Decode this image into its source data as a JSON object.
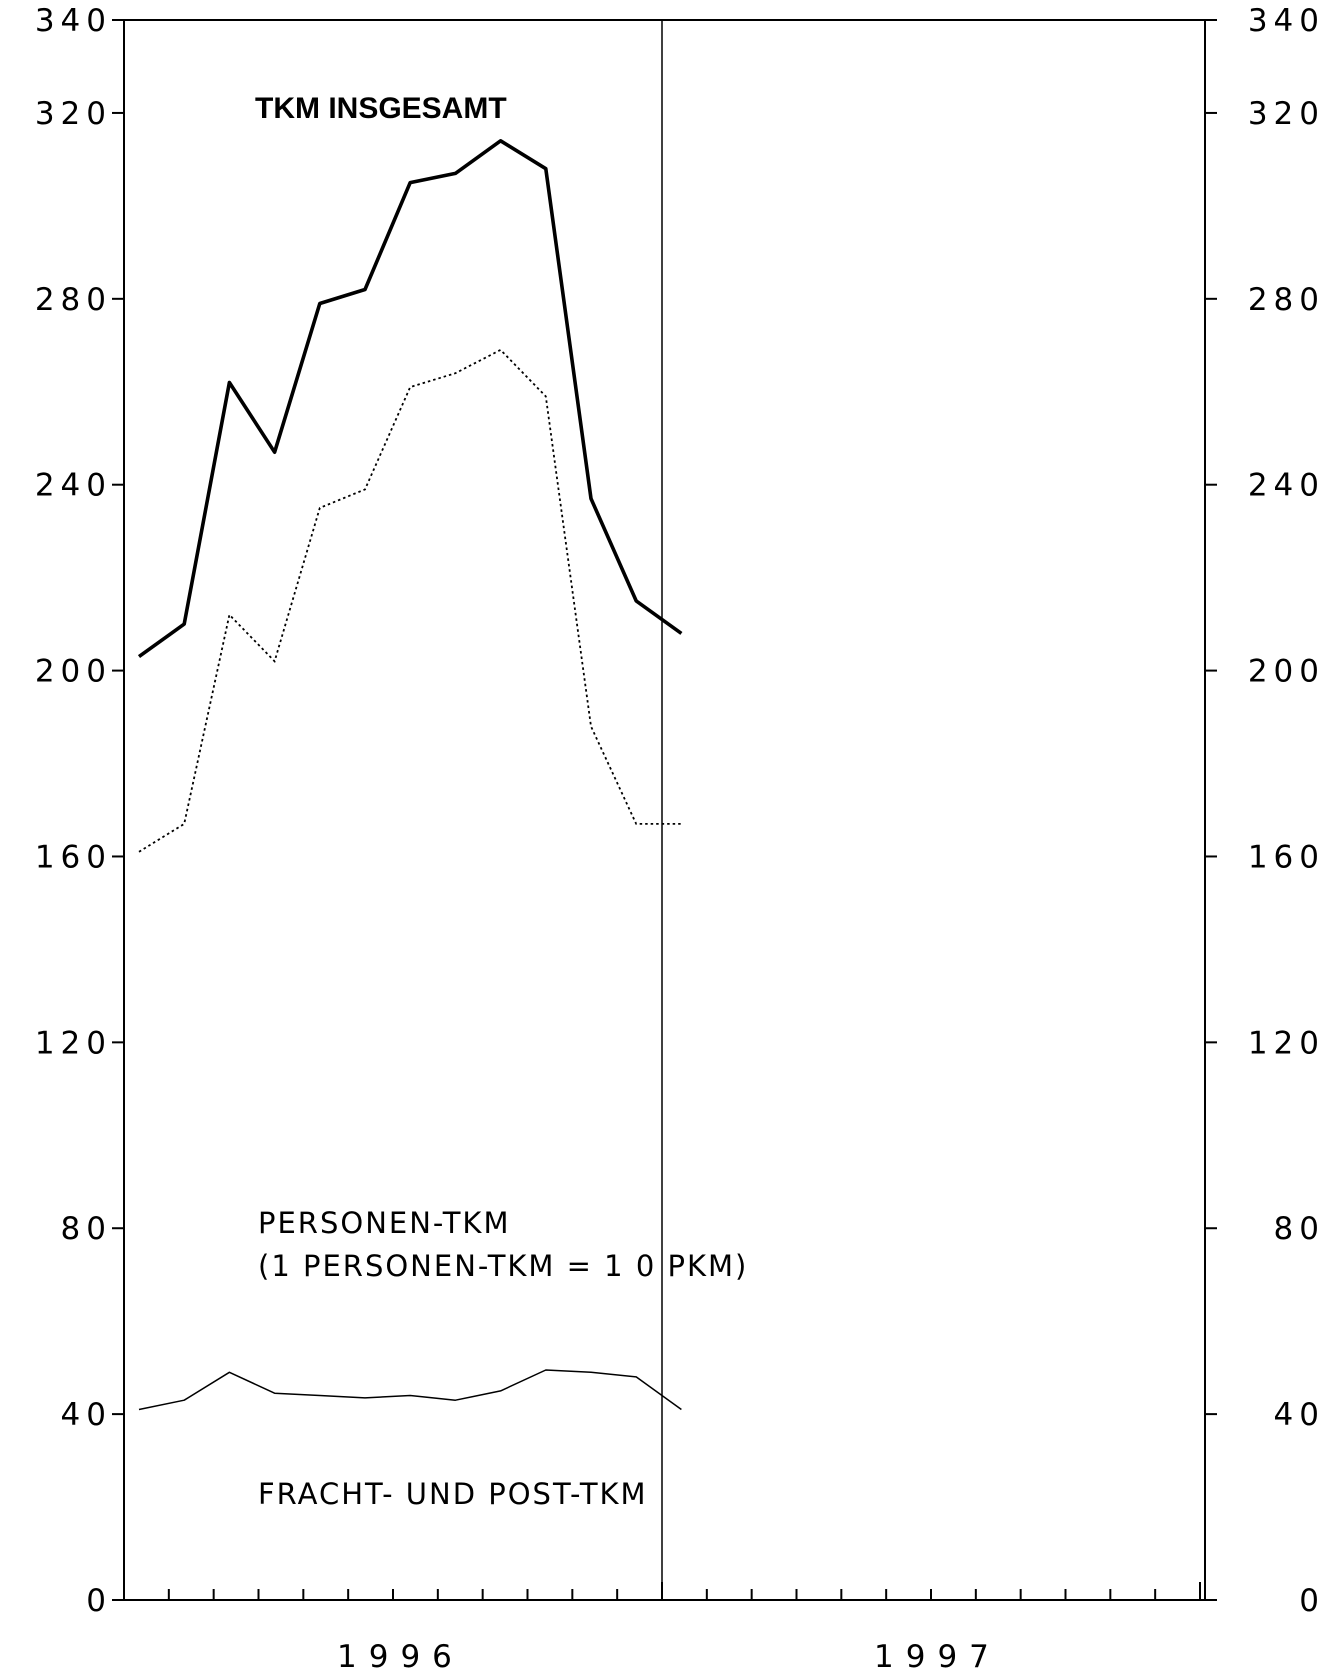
{
  "chart_data": {
    "type": "line",
    "title": "TKM INSGESAMT",
    "x": [
      "1996-01",
      "1996-02",
      "1996-03",
      "1996-04",
      "1996-05",
      "1996-06",
      "1996-07",
      "1996-08",
      "1996-09",
      "1996-10",
      "1996-11",
      "1996-12",
      "1997-01"
    ],
    "xlabels": [
      "1996",
      "1997"
    ],
    "ylim": [
      0,
      340
    ],
    "yticks": [
      0,
      40,
      80,
      120,
      160,
      200,
      240,
      280,
      320,
      340
    ],
    "ytick_labels": [
      "0",
      "40",
      "80",
      "120",
      "160",
      "200",
      "240",
      "280",
      "320",
      "340"
    ],
    "grid": false,
    "series": [
      {
        "name": "TKM INSGESAMT",
        "style": "solid-thick",
        "values": [
          203,
          210,
          262,
          247,
          279,
          282,
          305,
          307,
          314,
          308,
          237,
          215,
          208
        ]
      },
      {
        "name": "PERSONEN-TKM",
        "note": "(1 PERSONEN-TKM = 1 0 PKM)",
        "style": "dotted",
        "values": [
          161,
          167,
          212,
          202,
          235,
          239,
          261,
          264,
          269,
          259,
          188,
          167,
          167
        ]
      },
      {
        "name": "FRACHT- UND POST-TKM",
        "style": "solid-thin",
        "values": [
          41,
          43,
          49,
          44.5,
          44,
          43.5,
          44,
          43,
          45,
          49.5,
          49,
          48,
          41
        ]
      }
    ]
  }
}
